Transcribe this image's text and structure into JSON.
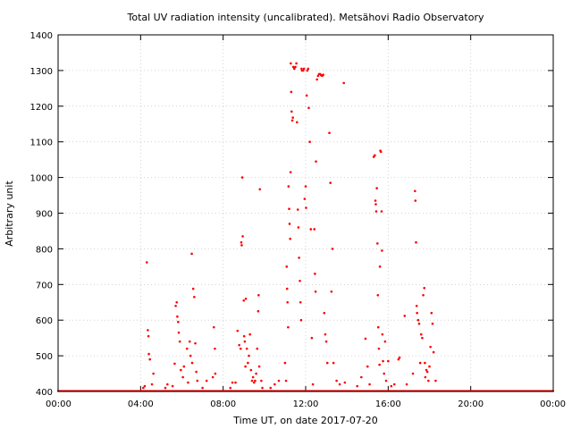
{
  "chart_data": {
    "type": "scatter",
    "title": "Total UV radiation intensity (uncalibrated). Metsähovi Radio Observatory",
    "xlabel": "Time UT, on date 2017-07-20",
    "ylabel": "Arbitrary unit",
    "xlim": [
      0,
      24
    ],
    "ylim": [
      400,
      1400
    ],
    "x_ticks": [
      {
        "value": 0,
        "label": "00:00"
      },
      {
        "value": 4,
        "label": "04:00"
      },
      {
        "value": 8,
        "label": "08:00"
      },
      {
        "value": 12,
        "label": "12:00"
      },
      {
        "value": 16,
        "label": "16:00"
      },
      {
        "value": 20,
        "label": "20:00"
      },
      {
        "value": 24,
        "label": "00:00"
      }
    ],
    "y_ticks": [
      400,
      500,
      600,
      700,
      800,
      900,
      1000,
      1100,
      1200,
      1300,
      1400
    ],
    "grid": true,
    "marker_color": "#ff0000",
    "baseline": {
      "value": 400,
      "from": 0,
      "to": 24
    },
    "points": [
      [
        4.13,
        410
      ],
      [
        4.2,
        415
      ],
      [
        4.3,
        762
      ],
      [
        4.35,
        572
      ],
      [
        4.38,
        555
      ],
      [
        4.4,
        505
      ],
      [
        4.45,
        490
      ],
      [
        4.55,
        420
      ],
      [
        4.62,
        450
      ],
      [
        5.2,
        410
      ],
      [
        5.3,
        420
      ],
      [
        5.55,
        415
      ],
      [
        5.65,
        478
      ],
      [
        5.7,
        640
      ],
      [
        5.75,
        650
      ],
      [
        5.78,
        610
      ],
      [
        5.82,
        595
      ],
      [
        5.85,
        565
      ],
      [
        5.9,
        540
      ],
      [
        5.95,
        460
      ],
      [
        6.05,
        440
      ],
      [
        6.1,
        470
      ],
      [
        6.25,
        520
      ],
      [
        6.3,
        425
      ],
      [
        6.38,
        540
      ],
      [
        6.42,
        500
      ],
      [
        6.48,
        786
      ],
      [
        6.5,
        480
      ],
      [
        6.55,
        688
      ],
      [
        6.6,
        665
      ],
      [
        6.65,
        535
      ],
      [
        6.7,
        455
      ],
      [
        6.75,
        430
      ],
      [
        7.0,
        410
      ],
      [
        7.2,
        430
      ],
      [
        7.5,
        440
      ],
      [
        7.55,
        580
      ],
      [
        7.6,
        520
      ],
      [
        7.62,
        450
      ],
      [
        8.35,
        410
      ],
      [
        8.45,
        425
      ],
      [
        8.6,
        425
      ],
      [
        8.7,
        570
      ],
      [
        8.78,
        530
      ],
      [
        8.85,
        520
      ],
      [
        8.88,
        818
      ],
      [
        8.9,
        810
      ],
      [
        8.93,
        1000
      ],
      [
        8.95,
        835
      ],
      [
        9.0,
        655
      ],
      [
        9.02,
        555
      ],
      [
        9.05,
        540
      ],
      [
        9.08,
        470
      ],
      [
        9.1,
        660
      ],
      [
        9.15,
        520
      ],
      [
        9.2,
        480
      ],
      [
        9.25,
        500
      ],
      [
        9.3,
        560
      ],
      [
        9.35,
        460
      ],
      [
        9.4,
        430
      ],
      [
        9.45,
        440
      ],
      [
        9.5,
        425
      ],
      [
        9.55,
        430
      ],
      [
        9.6,
        450
      ],
      [
        9.65,
        520
      ],
      [
        9.7,
        625
      ],
      [
        9.72,
        670
      ],
      [
        9.75,
        470
      ],
      [
        9.78,
        967
      ],
      [
        9.85,
        430
      ],
      [
        9.9,
        410
      ],
      [
        10.3,
        410
      ],
      [
        10.5,
        420
      ],
      [
        10.7,
        430
      ],
      [
        11.0,
        480
      ],
      [
        11.05,
        430
      ],
      [
        11.08,
        750
      ],
      [
        11.1,
        688
      ],
      [
        11.12,
        650
      ],
      [
        11.15,
        580
      ],
      [
        11.17,
        975
      ],
      [
        11.2,
        912
      ],
      [
        11.22,
        870
      ],
      [
        11.25,
        828
      ],
      [
        11.27,
        1015
      ],
      [
        11.28,
        1320
      ],
      [
        11.3,
        1240
      ],
      [
        11.32,
        1185
      ],
      [
        11.35,
        1160
      ],
      [
        11.38,
        1168
      ],
      [
        11.4,
        1310
      ],
      [
        11.45,
        1305
      ],
      [
        11.5,
        1310
      ],
      [
        11.55,
        1320
      ],
      [
        11.58,
        1155
      ],
      [
        11.62,
        910
      ],
      [
        11.65,
        860
      ],
      [
        11.68,
        775
      ],
      [
        11.72,
        710
      ],
      [
        11.75,
        650
      ],
      [
        11.78,
        600
      ],
      [
        11.8,
        1305
      ],
      [
        11.82,
        1300
      ],
      [
        11.88,
        1300
      ],
      [
        11.92,
        1305
      ],
      [
        11.95,
        940
      ],
      [
        12.0,
        975
      ],
      [
        12.02,
        915
      ],
      [
        12.05,
        1230
      ],
      [
        12.08,
        1300
      ],
      [
        12.12,
        1305
      ],
      [
        12.15,
        1195
      ],
      [
        12.2,
        1100
      ],
      [
        12.25,
        855
      ],
      [
        12.3,
        550
      ],
      [
        12.35,
        420
      ],
      [
        12.42,
        855
      ],
      [
        12.45,
        730
      ],
      [
        12.48,
        680
      ],
      [
        12.5,
        1045
      ],
      [
        12.55,
        1275
      ],
      [
        12.6,
        1285
      ],
      [
        12.65,
        1290
      ],
      [
        12.7,
        1290
      ],
      [
        12.75,
        1287
      ],
      [
        12.8,
        1285
      ],
      [
        12.85,
        1288
      ],
      [
        12.9,
        620
      ],
      [
        12.95,
        560
      ],
      [
        13.0,
        540
      ],
      [
        13.05,
        480
      ],
      [
        13.15,
        1125
      ],
      [
        13.2,
        985
      ],
      [
        13.25,
        680
      ],
      [
        13.3,
        800
      ],
      [
        13.35,
        480
      ],
      [
        13.5,
        430
      ],
      [
        13.65,
        420
      ],
      [
        13.85,
        1265
      ],
      [
        13.9,
        425
      ],
      [
        14.5,
        415
      ],
      [
        14.7,
        440
      ],
      [
        14.9,
        548
      ],
      [
        15.0,
        470
      ],
      [
        15.1,
        420
      ],
      [
        15.3,
        1058
      ],
      [
        15.35,
        1062
      ],
      [
        15.38,
        935
      ],
      [
        15.4,
        925
      ],
      [
        15.42,
        905
      ],
      [
        15.45,
        970
      ],
      [
        15.48,
        815
      ],
      [
        15.5,
        670
      ],
      [
        15.52,
        580
      ],
      [
        15.55,
        520
      ],
      [
        15.58,
        475
      ],
      [
        15.6,
        750
      ],
      [
        15.62,
        1075
      ],
      [
        15.65,
        1072
      ],
      [
        15.68,
        905
      ],
      [
        15.7,
        795
      ],
      [
        15.72,
        560
      ],
      [
        15.75,
        485
      ],
      [
        15.8,
        450
      ],
      [
        15.85,
        540
      ],
      [
        15.9,
        430
      ],
      [
        16.0,
        485
      ],
      [
        16.15,
        415
      ],
      [
        16.3,
        420
      ],
      [
        16.5,
        490
      ],
      [
        16.55,
        495
      ],
      [
        16.8,
        612
      ],
      [
        16.9,
        420
      ],
      [
        17.2,
        450
      ],
      [
        17.3,
        962
      ],
      [
        17.32,
        935
      ],
      [
        17.35,
        818
      ],
      [
        17.38,
        640
      ],
      [
        17.4,
        620
      ],
      [
        17.45,
        600
      ],
      [
        17.5,
        590
      ],
      [
        17.55,
        480
      ],
      [
        17.6,
        560
      ],
      [
        17.65,
        550
      ],
      [
        17.7,
        670
      ],
      [
        17.75,
        690
      ],
      [
        17.78,
        480
      ],
      [
        17.8,
        440
      ],
      [
        17.85,
        460
      ],
      [
        17.9,
        455
      ],
      [
        17.95,
        430
      ],
      [
        18.0,
        470
      ],
      [
        18.05,
        525
      ],
      [
        18.1,
        620
      ],
      [
        18.15,
        590
      ],
      [
        18.2,
        510
      ],
      [
        18.3,
        430
      ]
    ]
  }
}
